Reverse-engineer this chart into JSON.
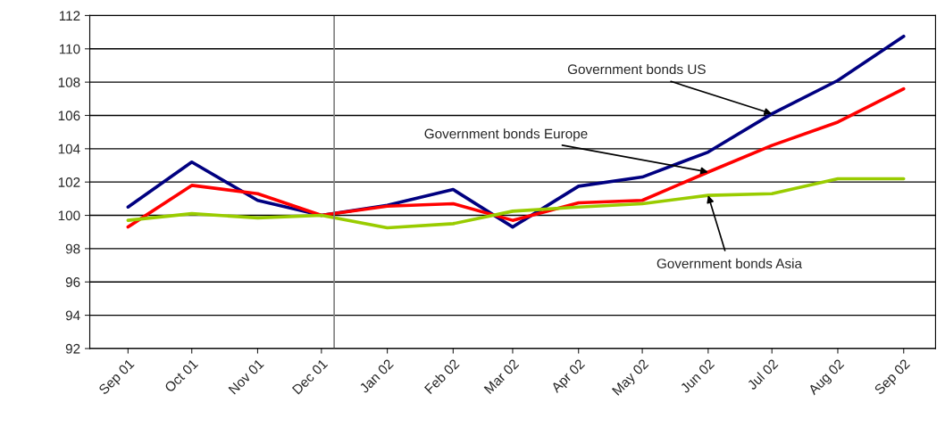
{
  "chart_data": {
    "type": "line",
    "x": [
      "2001-09",
      "2001-10",
      "2001-11",
      "2001-12",
      "2002-01",
      "2002-02",
      "2002-03",
      "2002-04",
      "2002-05",
      "2002-06",
      "2002-07",
      "2002-08",
      "2002-09"
    ],
    "xlim": [
      "2001-08-14",
      "2002-09-16"
    ],
    "xticks": [
      {
        "value": "2001-09",
        "label": "Sep 01"
      },
      {
        "value": "2001-10",
        "label": "Oct 01"
      },
      {
        "value": "2001-11",
        "label": "Nov 01"
      },
      {
        "value": "2001-12",
        "label": "Dec 01"
      },
      {
        "value": "2002-01",
        "label": "Jan 02"
      },
      {
        "value": "2002-02",
        "label": "Feb 02"
      },
      {
        "value": "2002-03",
        "label": "Mar 02"
      },
      {
        "value": "2002-04",
        "label": "Apr 02"
      },
      {
        "value": "2002-05",
        "label": "May 02"
      },
      {
        "value": "2002-06",
        "label": "Jun 02"
      },
      {
        "value": "2002-07",
        "label": "Jul 02"
      },
      {
        "value": "2002-08",
        "label": "Aug 02"
      },
      {
        "value": "2002-09",
        "label": "Sep 02"
      }
    ],
    "series": [
      {
        "color": "#000080",
        "values": [
          100.5,
          103.2,
          100.9,
          100.0,
          100.6,
          101.55,
          99.3,
          101.75,
          102.3,
          103.8,
          106.1,
          108.1,
          110.75
        ]
      },
      {
        "color": "#ff0000",
        "values": [
          99.3,
          101.8,
          101.3,
          100.0,
          100.55,
          100.7,
          99.7,
          100.75,
          100.9,
          102.6,
          104.2,
          105.6,
          107.6
        ]
      },
      {
        "color": "#99cc00",
        "values": [
          99.7,
          100.1,
          99.85,
          100.0,
          99.25,
          99.5,
          100.25,
          100.5,
          100.7,
          101.2,
          101.3,
          102.2,
          102.2
        ]
      }
    ],
    "ylim": [
      92,
      112
    ],
    "yticks": [
      92,
      94,
      96,
      98,
      100,
      102,
      104,
      106,
      108,
      110,
      112
    ],
    "grid": "y",
    "legend": false,
    "marker": "none",
    "line_style": "solid",
    "ref_lines": [
      {
        "axis": "x",
        "value": "2001-12-07",
        "color": "#808080",
        "line_style": "solid"
      }
    ],
    "annotations": [
      {
        "text": "Government bonds US",
        "x": "2002-07",
        "y": 106.1
      },
      {
        "text": "Government bonds Europe",
        "x": "2002-06",
        "y": 102.6
      },
      {
        "text": "Government bonds Asia",
        "x": "2002-06",
        "y": 101.2
      }
    ]
  }
}
